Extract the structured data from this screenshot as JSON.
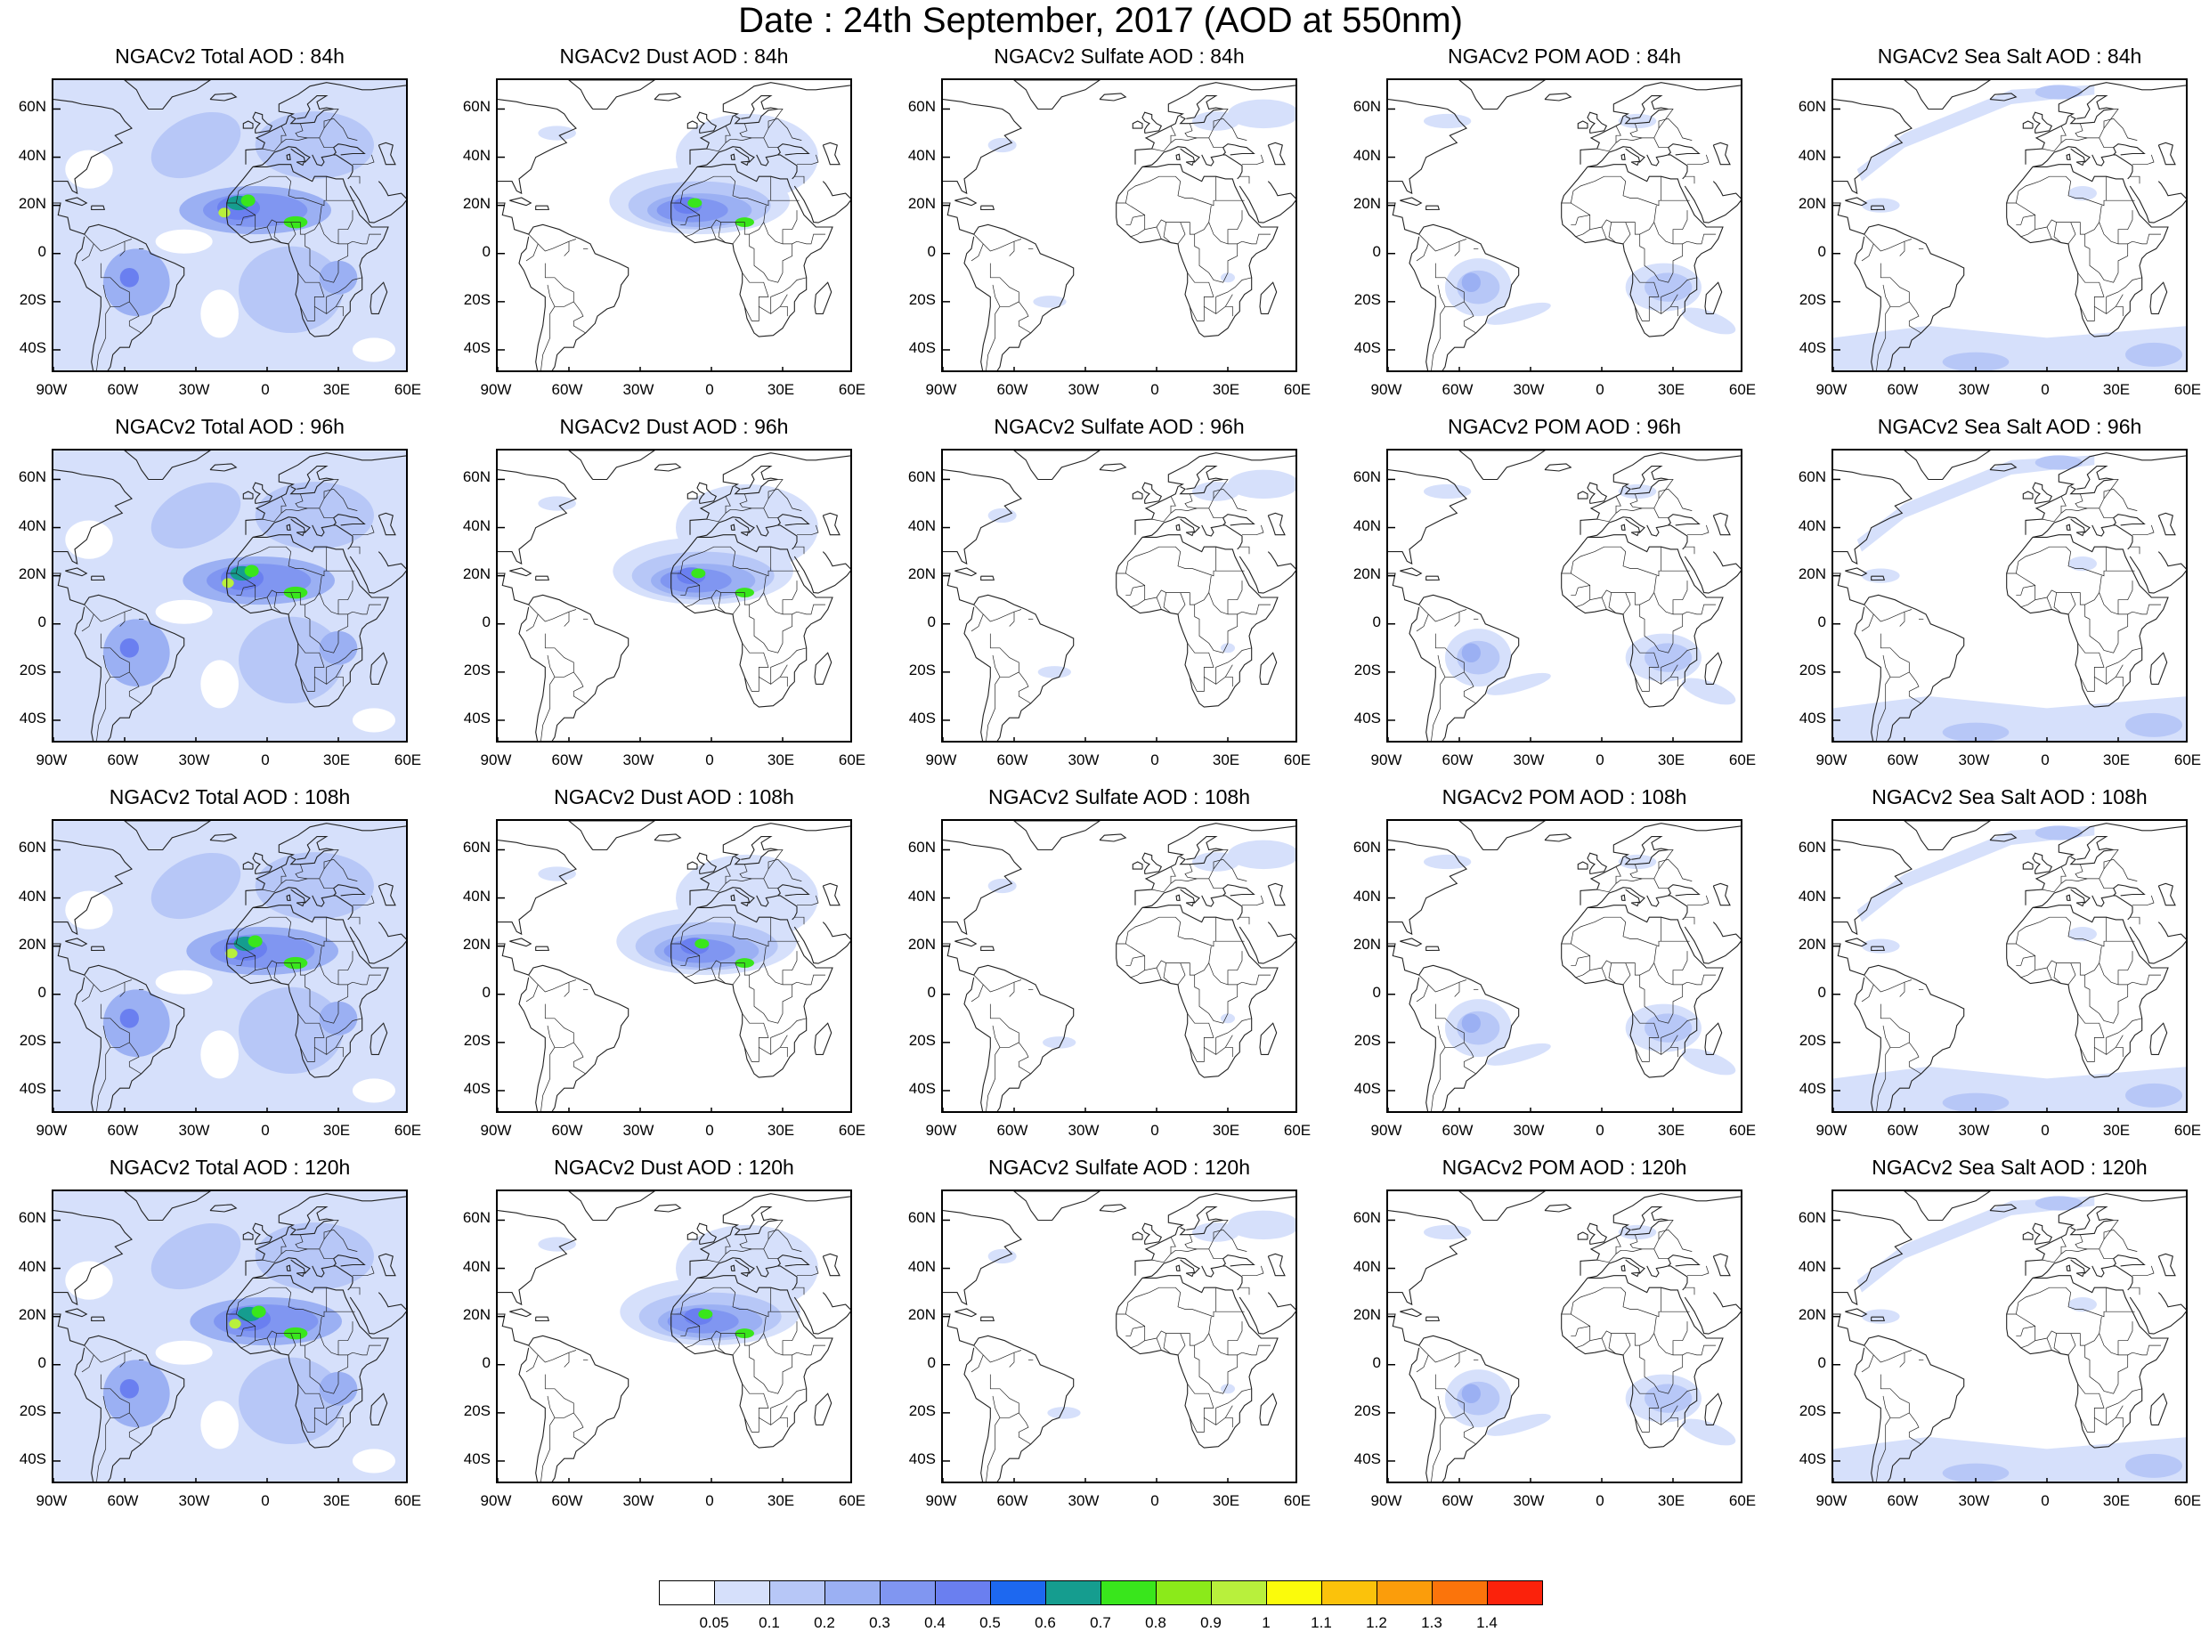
{
  "title": "Date : 24th September, 2017 (AOD at 550nm)",
  "row_labels": [
    "84h",
    "96h",
    "108h",
    "120h"
  ],
  "panels": [
    {
      "title": "NGACv2 Total AOD : 84h",
      "species": "total"
    },
    {
      "title": "NGACv2 Dust AOD : 84h",
      "species": "dust"
    },
    {
      "title": "NGACv2 Sulfate AOD : 84h",
      "species": "sulfate"
    },
    {
      "title": "NGACv2 POM AOD : 84h",
      "species": "pom"
    },
    {
      "title": "NGACv2 Sea Salt AOD : 84h",
      "species": "seasalt"
    },
    {
      "title": "NGACv2 Total AOD : 96h",
      "species": "total"
    },
    {
      "title": "NGACv2 Dust AOD : 96h",
      "species": "dust"
    },
    {
      "title": "NGACv2 Sulfate AOD : 96h",
      "species": "sulfate"
    },
    {
      "title": "NGACv2 POM AOD : 96h",
      "species": "pom"
    },
    {
      "title": "NGACv2 Sea Salt AOD : 96h",
      "species": "seasalt"
    },
    {
      "title": "NGACv2 Total AOD : 108h",
      "species": "total"
    },
    {
      "title": "NGACv2 Dust AOD : 108h",
      "species": "dust"
    },
    {
      "title": "NGACv2 Sulfate AOD : 108h",
      "species": "sulfate"
    },
    {
      "title": "NGACv2 POM AOD : 108h",
      "species": "pom"
    },
    {
      "title": "NGACv2 Sea Salt AOD : 108h",
      "species": "seasalt"
    },
    {
      "title": "NGACv2 Total AOD : 120h",
      "species": "total"
    },
    {
      "title": "NGACv2 Dust AOD : 120h",
      "species": "dust"
    },
    {
      "title": "NGACv2 Sulfate AOD : 120h",
      "species": "sulfate"
    },
    {
      "title": "NGACv2 POM AOD : 120h",
      "species": "pom"
    },
    {
      "title": "NGACv2 Sea Salt  AOD : 120h",
      "species": "seasalt"
    }
  ],
  "axes": {
    "lon_labels": [
      "90W",
      "60W",
      "30W",
      "0",
      "30E",
      "60E"
    ],
    "lat_labels": [
      "60N",
      "40N",
      "20N",
      "0",
      "20S",
      "40S"
    ],
    "lon_range": [
      -90,
      60
    ],
    "lat_range": [
      -50,
      72
    ]
  },
  "colorbar": {
    "labels": [
      "0.05",
      "0.1",
      "0.2",
      "0.3",
      "0.4",
      "0.5",
      "0.6",
      "0.7",
      "0.8",
      "0.9",
      "1",
      "1.1",
      "1.2",
      "1.3",
      "1.4"
    ],
    "colors": [
      "#ffffff",
      "#d6e0fb",
      "#b7c7f7",
      "#9bb0f3",
      "#8096f1",
      "#6a7ff0",
      "#1d68f0",
      "#159d8f",
      "#39e61c",
      "#8bea1a",
      "#b8f03c",
      "#fbfb0b",
      "#fbc20b",
      "#fb9d0b",
      "#fb740b",
      "#fb220b"
    ]
  },
  "map_style": {
    "coast_color": "#222222",
    "aerosol_colors": {
      "light": "#d6e0fb",
      "mid": "#b7c7f7",
      "medium": "#9bb0f3",
      "strong": "#8096f1",
      "intense": "#6a7ff0",
      "teal": "#159d8f",
      "green": "#39e61c",
      "yellow": "#b8f03c"
    }
  }
}
